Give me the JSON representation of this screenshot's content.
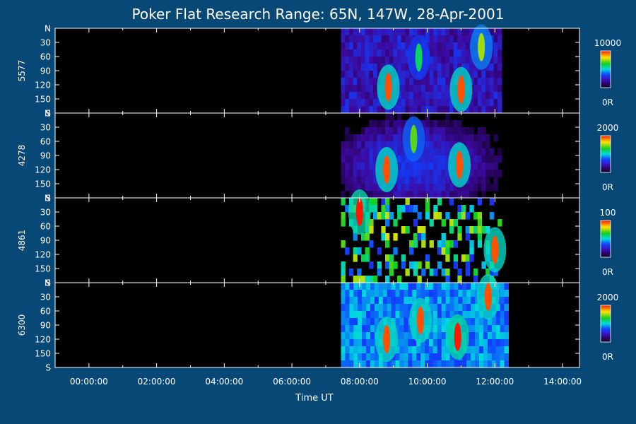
{
  "chart_data": {
    "type": "heatmap",
    "title": "Poker Flat Research Range: 65N, 147W, 28-Apr-2001",
    "xlabel": "Time UT",
    "x_ticks": [
      "00:00:00",
      "02:00:00",
      "04:00:00",
      "06:00:00",
      "08:00:00",
      "10:00:00",
      "12:00:00",
      "14:00:00"
    ],
    "x_range_hours": [
      -1.0,
      14.5
    ],
    "y_ticks": [
      "N",
      "30",
      "60",
      "90",
      "120",
      "150",
      "S"
    ],
    "y_range": [
      0,
      180
    ],
    "panels": [
      {
        "label": "5577",
        "max": 10000,
        "max_label": "10000",
        "min_label": "0R",
        "data_start_hour": 7.45,
        "data_end_hour": 12.2,
        "features": [
          {
            "hour": 8.85,
            "angle": 125,
            "level": 0.95
          },
          {
            "hour": 9.75,
            "angle": 62,
            "level": 0.6
          },
          {
            "hour": 11.0,
            "angle": 130,
            "level": 0.95
          },
          {
            "hour": 11.6,
            "angle": 40,
            "level": 0.75
          }
        ]
      },
      {
        "label": "4278",
        "max": 2000,
        "max_label": "2000",
        "min_label": "0R",
        "data_start_hour": 7.45,
        "data_end_hour": 12.2,
        "features": [
          {
            "hour": 8.8,
            "angle": 120,
            "level": 0.95
          },
          {
            "hour": 9.6,
            "angle": 55,
            "level": 0.7
          },
          {
            "hour": 10.95,
            "angle": 110,
            "level": 0.95
          }
        ]
      },
      {
        "label": "4861",
        "max": 100,
        "max_label": "100",
        "min_label": "0R",
        "data_start_hour": 7.45,
        "data_end_hour": 12.2,
        "features": [
          {
            "hour": 8.0,
            "angle": 30,
            "level": 1.0
          },
          {
            "hour": 12.0,
            "angle": 110,
            "level": 0.95
          }
        ]
      },
      {
        "label": "6300",
        "max": 2000,
        "max_label": "2000",
        "min_label": "0R",
        "data_start_hour": 7.45,
        "data_end_hour": 12.4,
        "features": [
          {
            "hour": 8.8,
            "angle": 120,
            "level": 0.95
          },
          {
            "hour": 9.8,
            "angle": 80,
            "level": 0.95
          },
          {
            "hour": 10.9,
            "angle": 115,
            "level": 1.0
          },
          {
            "hour": 11.8,
            "angle": 30,
            "level": 0.95
          }
        ]
      }
    ]
  }
}
